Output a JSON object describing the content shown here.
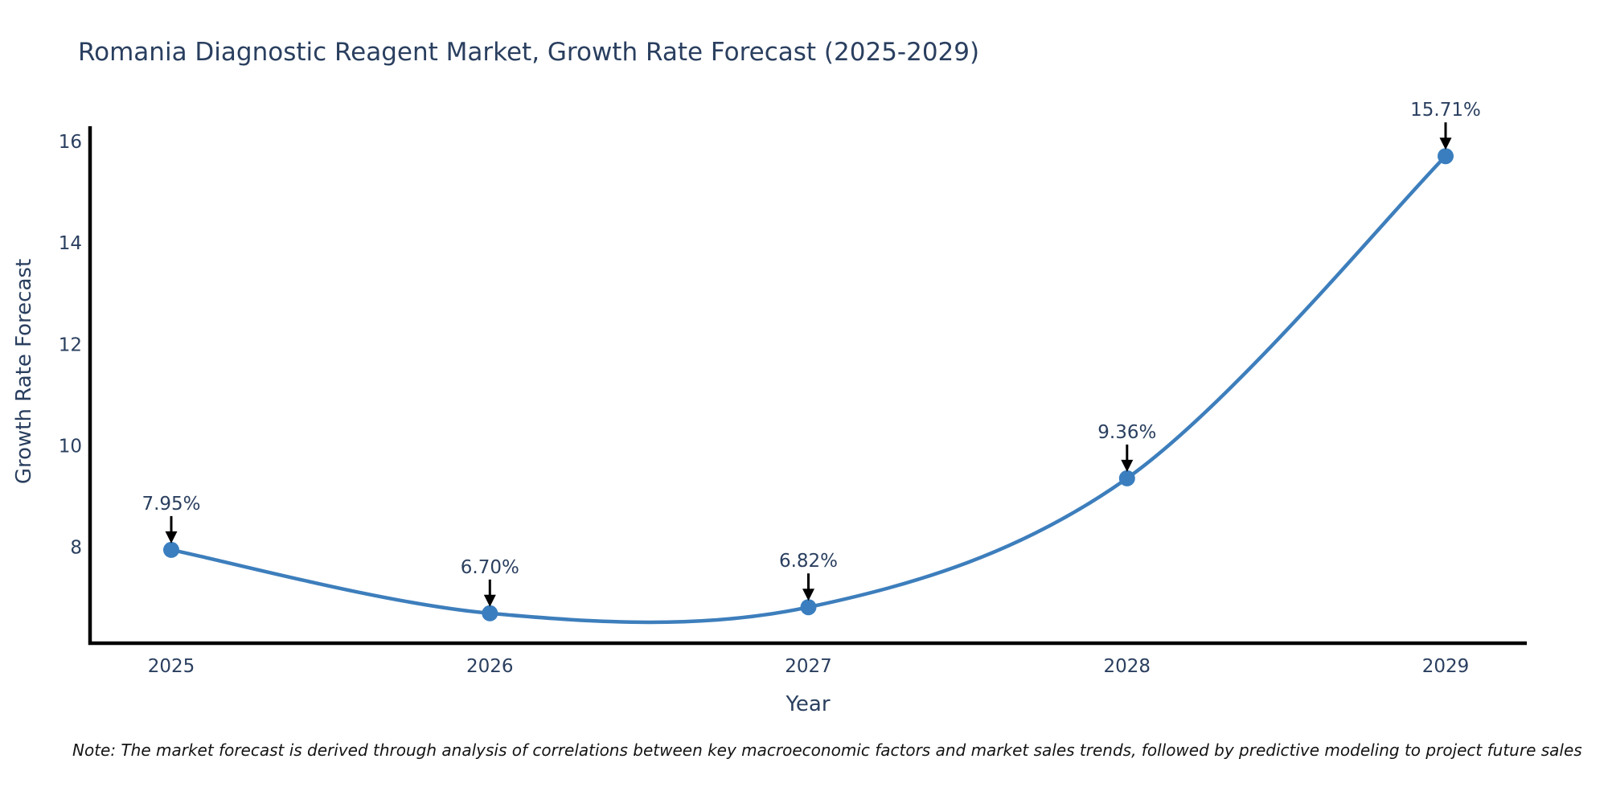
{
  "title": {
    "text": "Romania Diagnostic Reagent Market, Growth Rate Forecast (2025-2029)",
    "color": "#2a3f5f"
  },
  "note": {
    "text": "Note: The market forecast is derived through analysis of correlations between key macroeconomic factors and market sales trends, followed by predictive modeling to project future sales"
  },
  "chart_data": {
    "type": "line",
    "line_shape": "spline",
    "x": [
      "2025",
      "2026",
      "2027",
      "2028",
      "2029"
    ],
    "series": [
      {
        "name": "Growth Rate Forecast",
        "values": [
          7.95,
          6.7,
          6.82,
          9.36,
          15.71
        ]
      }
    ],
    "point_labels": [
      "7.95%",
      "6.70%",
      "6.82%",
      "9.36%",
      "15.71%"
    ],
    "title": "Romania Diagnostic Reagent Market, Growth Rate Forecast (2025-2029)",
    "xlabel": "Year",
    "ylabel": "Growth Rate Forecast",
    "yticks": [
      8,
      10,
      12,
      14,
      16
    ],
    "ylim": [
      6.11,
      16.3
    ],
    "grid": false,
    "legend_position": "none",
    "colors": {
      "line": "#3d7ebc",
      "marker": "#3a7ebf",
      "axis_line": "#000000",
      "tick_text": "#2a3f5f",
      "annotation_text": "#2a3f5f",
      "annotation_arrow": "#000000"
    }
  }
}
